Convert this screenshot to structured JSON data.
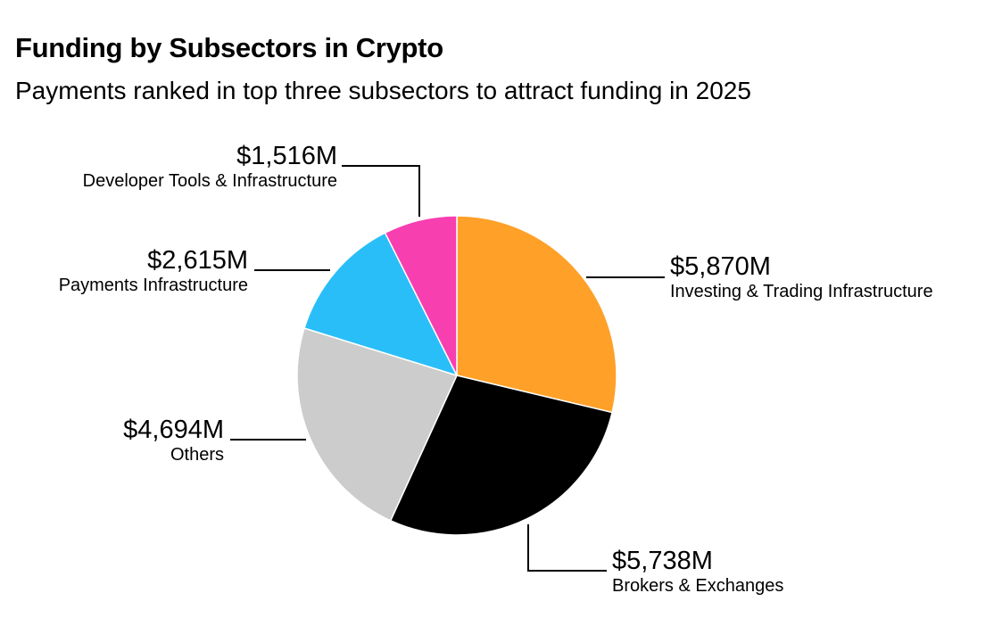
{
  "chart_data": {
    "type": "pie",
    "title": "Funding by Subsectors in Crypto",
    "subtitle": "Payments ranked in top three subsectors to attract funding in 2025",
    "slices": [
      {
        "label": "Investing & Trading Infrastructure",
        "value": 5870,
        "value_label": "$5,870M",
        "color": "#FFA028"
      },
      {
        "label": "Brokers & Exchanges",
        "value": 5738,
        "value_label": "$5,738M",
        "color": "#000000"
      },
      {
        "label": "Others",
        "value": 4694,
        "value_label": "$4,694M",
        "color": "#CCCCCC"
      },
      {
        "label": "Payments Infrastructure",
        "value": 2615,
        "value_label": "$2,615M",
        "color": "#29BEF8"
      },
      {
        "label": "Developer Tools & Infrastructure",
        "value": 1516,
        "value_label": "$1,516M",
        "color": "#F73FB0"
      }
    ],
    "start": "top",
    "direction": "clockwise",
    "legend": "none"
  }
}
